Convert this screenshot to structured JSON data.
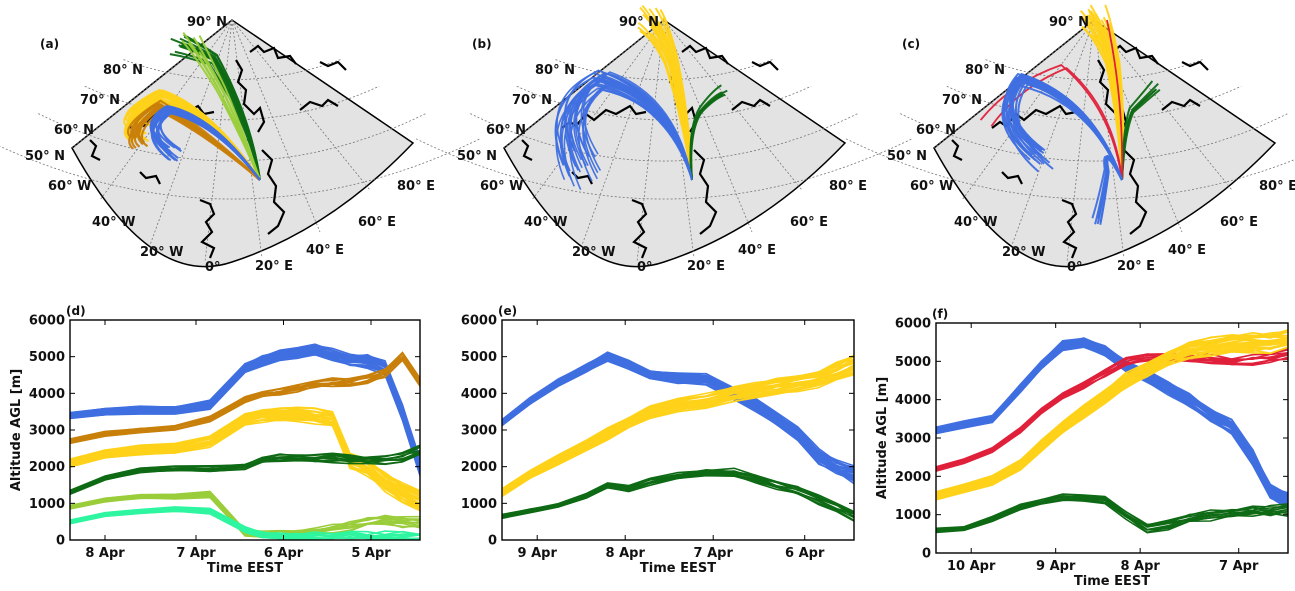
{
  "maps": [
    {
      "panel_label": "(a)",
      "lat_labels": [
        "90° N",
        "80° N",
        "70° N",
        "60° N",
        "50° N"
      ],
      "lon_labels": [
        "60° W",
        "40° W",
        "20° W",
        "0°",
        "20° E",
        "40° E",
        "60° E",
        "80° E"
      ]
    },
    {
      "panel_label": "(b)",
      "lat_labels": [
        "90° N",
        "80° N",
        "70° N",
        "60° N",
        "50° N"
      ],
      "lon_labels": [
        "60° W",
        "40° W",
        "20° W",
        "0°",
        "20° E",
        "40° E",
        "60° E",
        "80° E"
      ]
    },
    {
      "panel_label": "(c)",
      "lat_labels": [
        "90° N",
        "80° N",
        "70° N",
        "60° N",
        "50° N"
      ],
      "lon_labels": [
        "60° W",
        "40° W",
        "20° W",
        "0°",
        "20° E",
        "40° E",
        "60° E",
        "80° E"
      ]
    }
  ],
  "colors": {
    "blue": "#3f6fe0",
    "yellow": "#ffd21a",
    "orange": "#c8800a",
    "darkgreen": "#0e6a14",
    "lightgreen": "#9acd3a",
    "mint": "#2ef5a0",
    "red": "#e0203a",
    "land": "#e3e3e3"
  },
  "chart_data": [
    {
      "panel_label": "(d)",
      "type": "line",
      "xlabel": "Time EEST",
      "ylabel": "Altitude AGL [m]",
      "x_tick_labels": [
        "8 Apr",
        "7 Apr",
        "6 Apr",
        "5 Apr"
      ],
      "x_reversed": true,
      "y_ticks": [
        0,
        1000,
        2000,
        3000,
        4000,
        5000,
        6000
      ],
      "ylim": [
        0,
        6000
      ],
      "series": [
        {
          "color": "#3f6fe0",
          "x": [
            0,
            0.1,
            0.2,
            0.3,
            0.4,
            0.5,
            0.55,
            0.6,
            0.65,
            0.7,
            0.75,
            0.8,
            0.85,
            0.9,
            0.95,
            1.0
          ],
          "values": [
            3400,
            3500,
            3550,
            3550,
            3700,
            4700,
            4900,
            5050,
            5100,
            5200,
            5050,
            4900,
            4900,
            4700,
            3500,
            2000
          ]
        },
        {
          "color": "#c8800a",
          "x": [
            0,
            0.1,
            0.2,
            0.3,
            0.4,
            0.5,
            0.55,
            0.6,
            0.65,
            0.7,
            0.75,
            0.8,
            0.85,
            0.9,
            0.95,
            1.0
          ],
          "values": [
            2700,
            2900,
            3000,
            3050,
            3300,
            3850,
            4000,
            4050,
            4150,
            4250,
            4300,
            4300,
            4400,
            4600,
            5000,
            4300
          ]
        },
        {
          "color": "#ffd21a",
          "x": [
            0,
            0.1,
            0.2,
            0.3,
            0.4,
            0.5,
            0.55,
            0.6,
            0.65,
            0.7,
            0.75,
            0.8,
            0.85,
            0.9,
            0.95,
            1.0
          ],
          "values": [
            2100,
            2350,
            2450,
            2500,
            2700,
            3300,
            3400,
            3450,
            3450,
            3400,
            3300,
            2200,
            2000,
            1600,
            1300,
            1100
          ]
        },
        {
          "color": "#0e6a14",
          "x": [
            0,
            0.1,
            0.2,
            0.3,
            0.4,
            0.5,
            0.55,
            0.6,
            0.65,
            0.7,
            0.75,
            0.8,
            0.85,
            0.9,
            0.95,
            1.0
          ],
          "values": [
            1300,
            1700,
            1900,
            1950,
            1950,
            2000,
            2200,
            2250,
            2250,
            2250,
            2250,
            2200,
            2200,
            2200,
            2250,
            2500
          ]
        },
        {
          "color": "#9acd3a",
          "x": [
            0,
            0.1,
            0.2,
            0.3,
            0.4,
            0.5,
            0.55,
            0.6,
            0.65,
            0.7,
            0.75,
            0.8,
            0.85,
            0.9,
            0.95,
            1.0
          ],
          "values": [
            900,
            1100,
            1200,
            1200,
            1250,
            200,
            150,
            150,
            200,
            250,
            300,
            400,
            500,
            550,
            500,
            500
          ]
        },
        {
          "color": "#2ef5a0",
          "x": [
            0,
            0.1,
            0.2,
            0.3,
            0.4,
            0.5,
            0.55,
            0.6,
            0.65,
            0.7,
            0.75,
            0.8,
            0.85,
            0.9,
            0.95,
            1.0
          ],
          "values": [
            500,
            700,
            800,
            850,
            800,
            300,
            150,
            100,
            100,
            100,
            100,
            150,
            100,
            100,
            100,
            100
          ]
        }
      ]
    },
    {
      "panel_label": "(e)",
      "type": "line",
      "xlabel": "Time EEST",
      "ylabel": "",
      "x_tick_labels": [
        "9 Apr",
        "8 Apr",
        "7 Apr",
        "6 Apr"
      ],
      "x_reversed": true,
      "y_ticks": [
        0,
        1000,
        2000,
        3000,
        4000,
        5000,
        6000
      ],
      "ylim": [
        0,
        6000
      ],
      "series": [
        {
          "color": "#3f6fe0",
          "x": [
            0,
            0.08,
            0.16,
            0.24,
            0.3,
            0.36,
            0.42,
            0.5,
            0.58,
            0.66,
            0.72,
            0.78,
            0.84,
            0.9,
            0.95,
            1.0
          ],
          "values": [
            3200,
            3800,
            4300,
            4700,
            5000,
            4800,
            4500,
            4400,
            4400,
            4000,
            3700,
            3300,
            2900,
            2300,
            2000,
            1800
          ]
        },
        {
          "color": "#ffd21a",
          "x": [
            0,
            0.08,
            0.16,
            0.24,
            0.3,
            0.36,
            0.42,
            0.5,
            0.58,
            0.66,
            0.72,
            0.78,
            0.84,
            0.9,
            0.95,
            1.0
          ],
          "values": [
            1300,
            1800,
            2200,
            2600,
            2900,
            3200,
            3500,
            3700,
            3800,
            4000,
            4100,
            4200,
            4300,
            4400,
            4600,
            4800
          ]
        },
        {
          "color": "#0e6a14",
          "x": [
            0,
            0.08,
            0.16,
            0.24,
            0.3,
            0.36,
            0.42,
            0.5,
            0.58,
            0.66,
            0.72,
            0.78,
            0.84,
            0.9,
            0.95,
            1.0
          ],
          "values": [
            650,
            800,
            950,
            1200,
            1500,
            1400,
            1600,
            1750,
            1850,
            1850,
            1700,
            1500,
            1350,
            1100,
            900,
            700
          ]
        }
      ]
    },
    {
      "panel_label": "(f)",
      "type": "line",
      "xlabel": "Time EEST",
      "ylabel": "Altitude AGL [m]",
      "x_tick_labels": [
        "10 Apr",
        "9 Apr",
        "8 Apr",
        "7 Apr"
      ],
      "x_reversed": true,
      "y_ticks": [
        0,
        1000,
        2000,
        3000,
        4000,
        5000,
        6000
      ],
      "ylim": [
        0,
        6000
      ],
      "series": [
        {
          "color": "#3f6fe0",
          "x": [
            0,
            0.08,
            0.16,
            0.24,
            0.3,
            0.36,
            0.42,
            0.48,
            0.54,
            0.6,
            0.66,
            0.72,
            0.78,
            0.84,
            0.9,
            0.95,
            1.0
          ],
          "values": [
            3200,
            3350,
            3500,
            4300,
            4900,
            5400,
            5500,
            5300,
            4900,
            4600,
            4300,
            4000,
            3600,
            3300,
            2500,
            1600,
            1400
          ]
        },
        {
          "color": "#e0203a",
          "x": [
            0,
            0.08,
            0.16,
            0.24,
            0.3,
            0.36,
            0.42,
            0.48,
            0.54,
            0.6,
            0.66,
            0.72,
            0.78,
            0.84,
            0.9,
            0.95,
            1.0
          ],
          "values": [
            2200,
            2400,
            2700,
            3200,
            3700,
            4100,
            4400,
            4700,
            5000,
            5100,
            5100,
            5100,
            5050,
            5000,
            5050,
            5100,
            5200
          ]
        },
        {
          "color": "#ffd21a",
          "x": [
            0,
            0.08,
            0.16,
            0.24,
            0.3,
            0.36,
            0.42,
            0.48,
            0.54,
            0.6,
            0.66,
            0.72,
            0.78,
            0.84,
            0.9,
            0.95,
            1.0
          ],
          "values": [
            1500,
            1700,
            1900,
            2300,
            2800,
            3300,
            3700,
            4100,
            4500,
            4800,
            5100,
            5300,
            5400,
            5500,
            5500,
            5500,
            5600
          ]
        },
        {
          "color": "#0e6a14",
          "x": [
            0,
            0.08,
            0.16,
            0.24,
            0.3,
            0.36,
            0.42,
            0.48,
            0.54,
            0.6,
            0.66,
            0.72,
            0.78,
            0.84,
            0.9,
            0.95,
            1.0
          ],
          "values": [
            600,
            650,
            900,
            1200,
            1350,
            1450,
            1450,
            1400,
            1000,
            650,
            750,
            900,
            1000,
            1050,
            1100,
            1100,
            1150
          ]
        }
      ]
    }
  ]
}
